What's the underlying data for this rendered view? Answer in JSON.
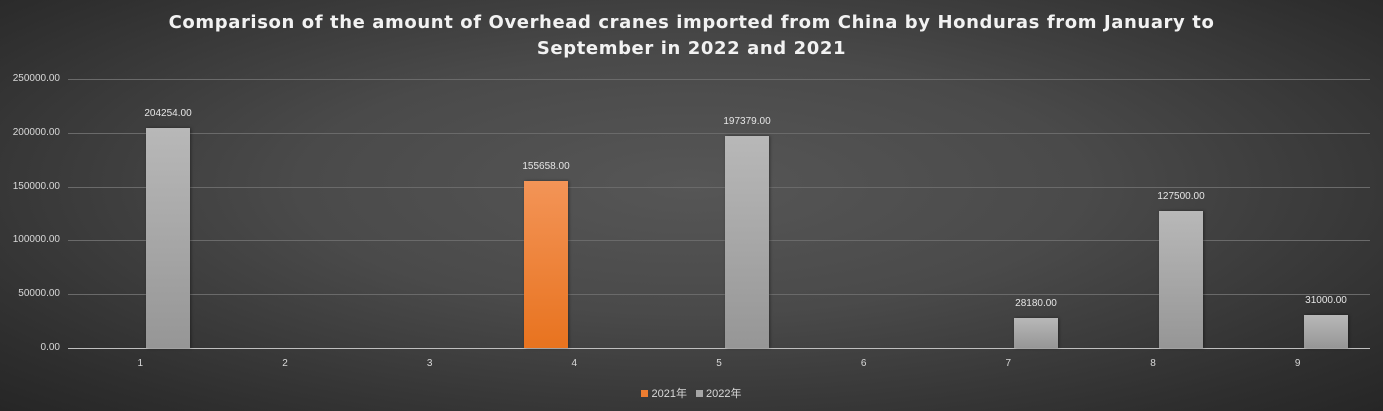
{
  "chart_data": {
    "type": "bar",
    "title": "Comparison of the amount of Overhead cranes imported from China by Honduras from January to September in 2022 and 2021",
    "title_lines": [
      "Comparison of the amount of Overhead cranes imported from China by Honduras from January to",
      "September in 2022 and 2021"
    ],
    "xlabel": "",
    "ylabel": "",
    "categories": [
      "1",
      "2",
      "3",
      "4",
      "5",
      "6",
      "7",
      "8",
      "9"
    ],
    "series": [
      {
        "name": "2021年",
        "color": "#ed7d31",
        "values": [
          null,
          null,
          null,
          155658.0,
          null,
          null,
          null,
          null,
          null
        ]
      },
      {
        "name": "2022年",
        "color": "#a5a5a5",
        "values": [
          204254.0,
          null,
          null,
          null,
          197379.0,
          null,
          28180.0,
          127500.0,
          31000.0
        ]
      }
    ],
    "ylim": [
      0,
      250000
    ],
    "yticks": [
      "0.00",
      "50000.00",
      "100000.00",
      "150000.00",
      "200000.00",
      "250000.00"
    ],
    "grid": true,
    "legend_position": "bottom",
    "data_labels": {
      "2021年": [
        "",
        "",
        "",
        "155658.00",
        "",
        "",
        "",
        "",
        ""
      ],
      "2022年": [
        "204254.00",
        "",
        "",
        "",
        "197379.00",
        "",
        "28180.00",
        "127500.00",
        "31000.00"
      ]
    }
  }
}
